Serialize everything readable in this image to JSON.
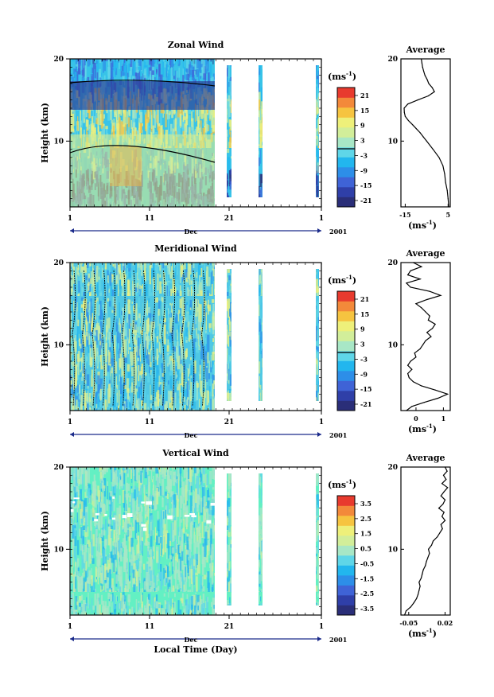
{
  "chart_data": [
    {
      "type": "heatmap",
      "title": "Zonal Wind",
      "ylabel": "Height (km)",
      "y_ticks": [
        "20",
        "10"
      ],
      "ylim": [
        2,
        20
      ],
      "x_ticks": [
        "1",
        "11",
        "21",
        "1"
      ],
      "x_month": "Dec",
      "year": "2001",
      "colorbar_unit": "(ms",
      "colorbar_unit_exp": "-1",
      "colorbar_unit_close": ")",
      "colorbar_ticks": [
        "21",
        "15",
        "9",
        "3",
        "-3",
        "-9",
        "-15",
        "-21"
      ],
      "colorbar_range": [
        -24,
        24
      ],
      "profile": {
        "title": "Average",
        "x_ticks": [
          "-15",
          "5"
        ],
        "xlim": [
          -17,
          6
        ],
        "xlabel": "(ms",
        "xlabel_exp": "-1",
        "xlabel_close": ")",
        "y_ticks": [
          "20",
          "10"
        ],
        "height_km": [
          2.0,
          3.0,
          4.0,
          5.0,
          6.0,
          7.0,
          8.0,
          9.0,
          10.0,
          10.5,
          11.0,
          11.5,
          12.0,
          12.5,
          13.0,
          13.5,
          14.0,
          14.5,
          15.0,
          15.5,
          16.0,
          16.5,
          17.0,
          17.5,
          18.0,
          18.5,
          19.0,
          19.5,
          20.0
        ],
        "values": [
          5.3,
          5.0,
          4.6,
          3.8,
          3.4,
          2.6,
          0.8,
          -2.0,
          -5.0,
          -6.5,
          -8.0,
          -9.8,
          -11.6,
          -13.5,
          -15.0,
          -15.4,
          -15.5,
          -13.8,
          -9.2,
          -4.2,
          -1.4,
          -2.4,
          -4.0,
          -4.8,
          -5.8,
          -6.4,
          -6.9,
          -7.2,
          -7.5
        ]
      }
    },
    {
      "type": "heatmap",
      "title": "Meridional Wind",
      "ylabel": "Height (km)",
      "y_ticks": [
        "20",
        "10"
      ],
      "ylim": [
        2,
        20
      ],
      "x_ticks": [
        "1",
        "11",
        "21",
        "1"
      ],
      "x_month": "Dec",
      "year": "2001",
      "colorbar_unit": "(ms",
      "colorbar_unit_exp": "-1",
      "colorbar_unit_close": ")",
      "colorbar_ticks": [
        "21",
        "15",
        "9",
        "3",
        "-3",
        "-9",
        "-15",
        "-21"
      ],
      "colorbar_range": [
        -24,
        24
      ],
      "profile": {
        "title": "Average",
        "x_ticks": [
          "0",
          "1"
        ],
        "xlim": [
          -0.55,
          1.25
        ],
        "xlabel": "(ms",
        "xlabel_exp": "-1",
        "xlabel_close": ")",
        "y_ticks": [
          "20",
          "10"
        ],
        "height_km": [
          2.0,
          2.5,
          3.0,
          3.5,
          4.0,
          4.5,
          5.0,
          5.5,
          6.0,
          6.5,
          7.0,
          7.5,
          8.0,
          8.5,
          9.0,
          9.5,
          10.0,
          10.5,
          11.0,
          11.5,
          12.0,
          12.5,
          13.0,
          13.5,
          14.0,
          14.5,
          15.0,
          15.5,
          16.0,
          16.5,
          17.0,
          17.5,
          18.0,
          18.5,
          19.0,
          19.5,
          20.0
        ],
        "values": [
          -0.35,
          -0.15,
          0.3,
          0.8,
          1.15,
          0.7,
          0.2,
          -0.1,
          -0.25,
          -0.3,
          -0.15,
          -0.3,
          -0.2,
          0.0,
          -0.05,
          0.15,
          0.25,
          0.35,
          0.55,
          0.4,
          0.6,
          0.7,
          0.45,
          0.5,
          0.35,
          0.2,
          0.0,
          0.4,
          0.9,
          0.5,
          -0.2,
          -0.35,
          0.15,
          -0.3,
          -0.2,
          0.2,
          -0.1
        ]
      }
    },
    {
      "type": "heatmap",
      "title": "Vertical Wind",
      "ylabel": "Height (km)",
      "y_ticks": [
        "20",
        "10"
      ],
      "ylim": [
        2,
        20
      ],
      "x_ticks": [
        "1",
        "11",
        "21",
        "1"
      ],
      "x_month": "Dec",
      "year": "2001",
      "xlabel": "Local Time (Day)",
      "colorbar_unit": "(ms",
      "colorbar_unit_exp": "-1",
      "colorbar_unit_close": ")",
      "colorbar_ticks": [
        "3.5",
        "2.5",
        "1.5",
        "0.5",
        "-0.5",
        "-1.5",
        "-2.5",
        "-3.5"
      ],
      "colorbar_range": [
        -4,
        4
      ],
      "profile": {
        "title": "Average",
        "x_ticks": [
          "-0.05",
          "0.02"
        ],
        "xlim": [
          -0.065,
          0.03
        ],
        "xlabel": "(ms",
        "xlabel_exp": "-1",
        "xlabel_close": ")",
        "y_ticks": [
          "20",
          "10"
        ],
        "height_km": [
          2.0,
          2.5,
          3.0,
          3.5,
          4.0,
          4.5,
          5.0,
          5.5,
          6.0,
          6.5,
          7.0,
          7.5,
          8.0,
          8.5,
          9.0,
          9.5,
          10.0,
          10.5,
          11.0,
          11.5,
          12.0,
          12.5,
          13.0,
          13.5,
          14.0,
          14.5,
          15.0,
          15.5,
          16.0,
          16.5,
          17.0,
          17.5,
          18.0,
          18.5,
          19.0,
          19.5,
          20.0
        ],
        "values": [
          -0.058,
          -0.055,
          -0.046,
          -0.04,
          -0.035,
          -0.032,
          -0.03,
          -0.028,
          -0.03,
          -0.026,
          -0.024,
          -0.022,
          -0.018,
          -0.016,
          -0.013,
          -0.01,
          -0.012,
          -0.006,
          -0.003,
          0.005,
          0.01,
          0.015,
          0.012,
          0.02,
          0.014,
          0.018,
          0.008,
          0.016,
          0.02,
          0.012,
          0.018,
          0.025,
          0.014,
          0.022,
          0.017,
          0.024,
          0.02
        ]
      }
    }
  ]
}
